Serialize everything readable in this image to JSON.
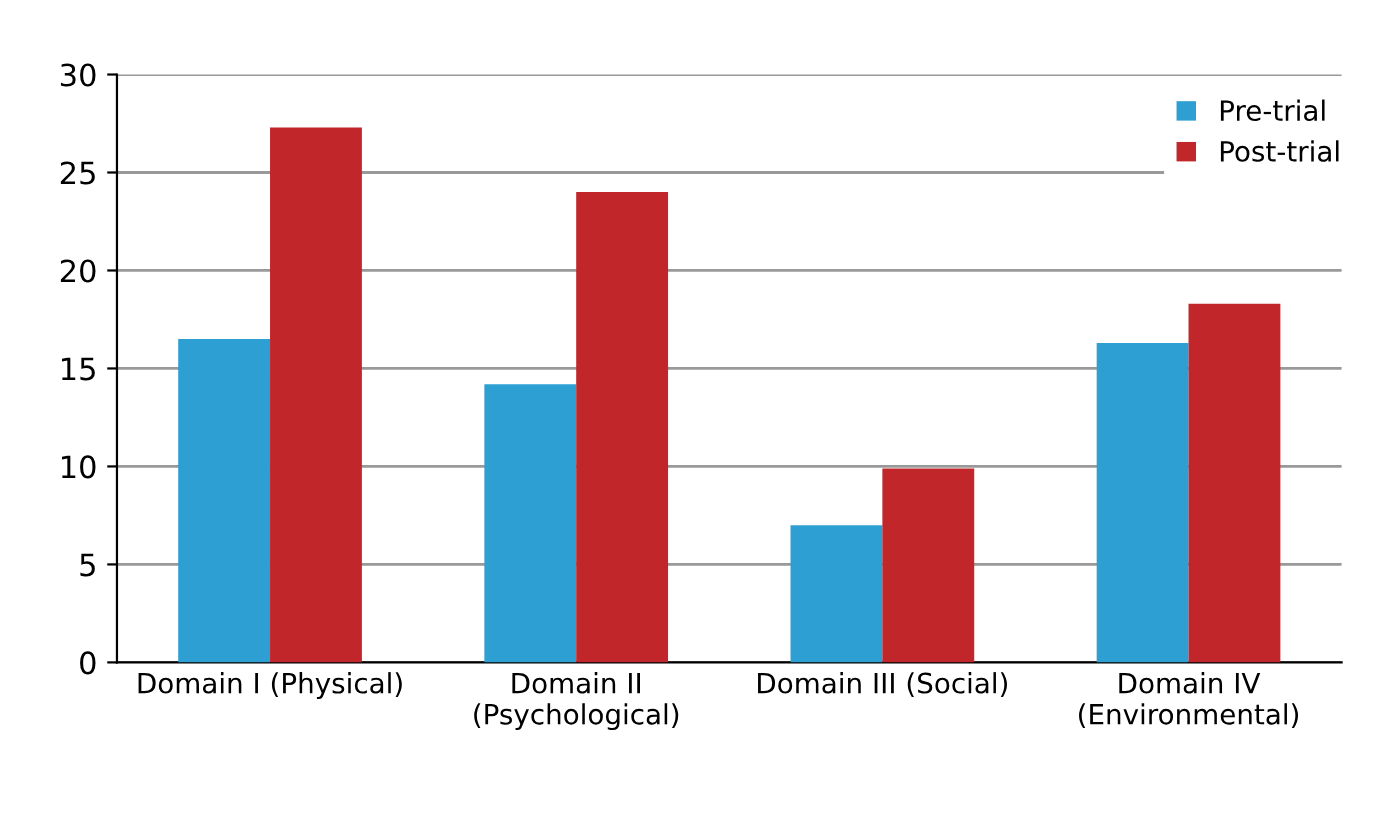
{
  "chart_data": {
    "type": "bar",
    "categories": [
      "Domain I (Physical)",
      "Domain II\n(Psychological)",
      "Domain III (Social)",
      "Domain IV\n(Environmental)"
    ],
    "series": [
      {
        "name": "Pre-trial",
        "color": "#2e9fd3",
        "values": [
          16.5,
          14.2,
          7,
          16.3
        ]
      },
      {
        "name": "Post-trial",
        "color": "#c0262a",
        "values": [
          27.3,
          24,
          9.9,
          18.3
        ]
      }
    ],
    "ylim": [
      0,
      30
    ],
    "yticks": [
      0,
      5,
      10,
      15,
      20,
      25,
      30
    ],
    "grid": "y",
    "legend": "top right"
  }
}
